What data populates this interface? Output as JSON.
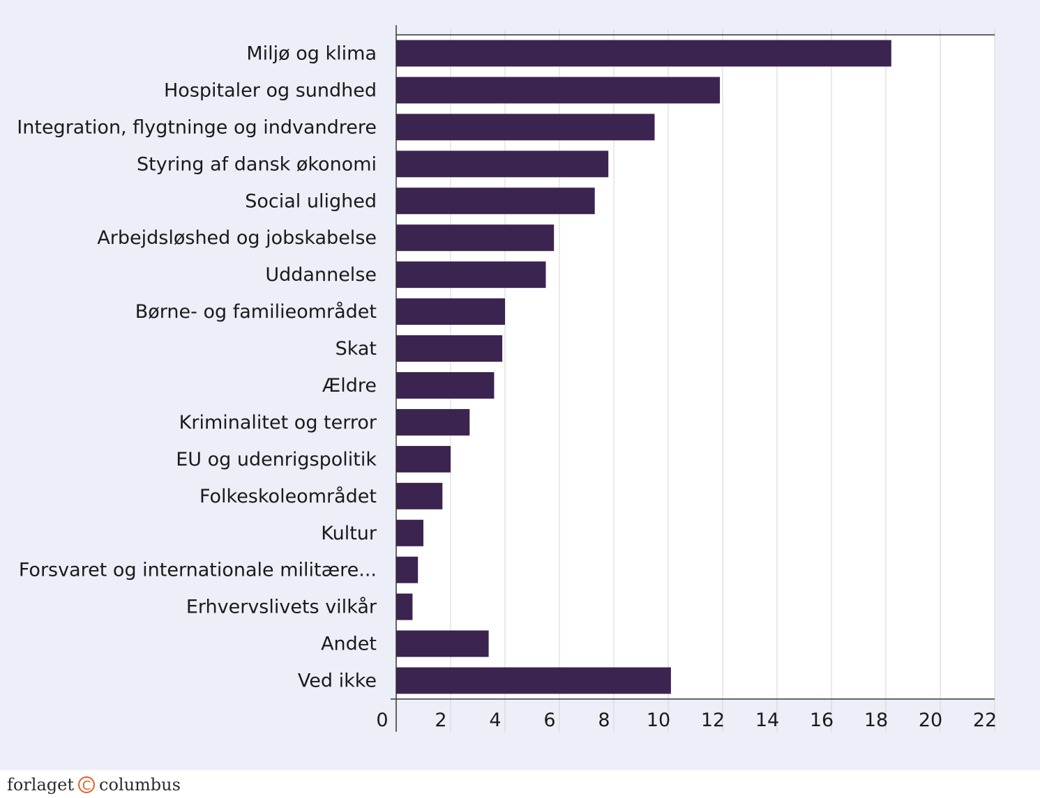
{
  "chart_data": {
    "type": "bar",
    "orientation": "horizontal",
    "categories": [
      "Miljø og klima",
      "Hospitaler og sundhed",
      "Integration, flygtninge og indvandrere",
      "Styring af dansk økonomi",
      "Social ulighed",
      "Arbejdsløshed og jobskabelse",
      "Uddannelse",
      "Børne- og familieområdet",
      "Skat",
      "Ældre",
      "Kriminalitet og terror",
      "EU og udenrigspolitik",
      "Folkeskoleområdet",
      "Kultur",
      "Forsvaret og internationale militære...",
      "Erhvervslivets vilkår",
      "Andet",
      "Ved ikke"
    ],
    "values": [
      18.2,
      11.9,
      9.5,
      7.8,
      7.3,
      5.8,
      5.5,
      4.0,
      3.9,
      3.6,
      2.7,
      2.0,
      1.7,
      1.0,
      0.8,
      0.6,
      3.4,
      10.1
    ],
    "xlim": [
      0,
      22
    ],
    "xticks": [
      "0",
      "2",
      "4",
      "6",
      "8",
      "10",
      "12",
      "14",
      "16",
      "18",
      "20",
      "22"
    ],
    "grid": "vertical",
    "bar_color": "#3b244f",
    "plot_background": "#ffffff",
    "panel_background": "#eceef8"
  },
  "footer": {
    "brand_left": "forlaget",
    "brand_mark": "C",
    "brand_right": "columbus",
    "mark_color": "#e0622a"
  }
}
